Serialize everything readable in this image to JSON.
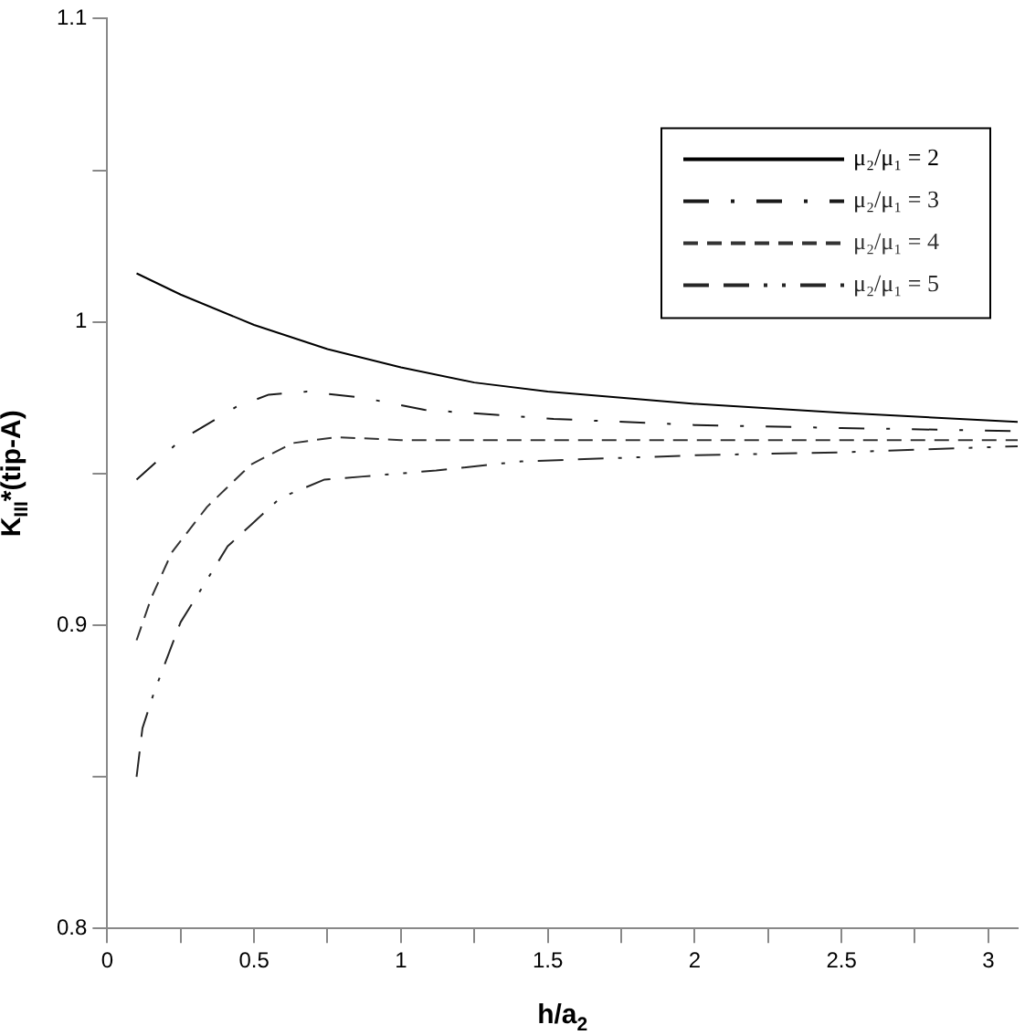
{
  "chart_data": {
    "type": "line",
    "xlabel": "h/a$_{2}$",
    "ylabel": "K$_{III}$*(tip-A)",
    "xlim": [
      0,
      3.1
    ],
    "ylim": [
      0.8,
      1.1
    ],
    "xticks": [
      0,
      {
        "value": 0.25,
        "label": null
      },
      0.5,
      {
        "value": 0.75,
        "label": null
      },
      1,
      {
        "value": 1.25,
        "label": null
      },
      1.5,
      {
        "value": 1.75,
        "label": null
      },
      2,
      {
        "value": 2.25,
        "label": null
      },
      2.5,
      {
        "value": 2.75,
        "label": null
      },
      3
    ],
    "yticks": [
      0.8,
      {
        "value": 0.85,
        "label": null
      },
      0.9,
      {
        "value": 0.95,
        "label": null
      },
      1,
      {
        "value": 1.05,
        "label": null
      },
      1.1
    ],
    "grid": false,
    "legend": "top right",
    "marker": "none",
    "series": [
      {
        "name": "μ₂/μ₁ = 2",
        "color": "#000000",
        "line_style": "solid",
        "x": [
          0.1,
          0.25,
          0.5,
          0.75,
          1.0,
          1.25,
          1.5,
          2.0,
          2.5,
          3.1
        ],
        "values": [
          1.016,
          1.009,
          0.999,
          0.991,
          0.985,
          0.98,
          0.977,
          0.973,
          0.97,
          0.967
        ]
      },
      {
        "name": "μ₂/μ₁ = 3",
        "color": "#1a1a1a",
        "line_style": "dashdot",
        "x": [
          0.1,
          0.25,
          0.44,
          0.55,
          0.68,
          0.87,
          1.08,
          1.52,
          2.0,
          2.5,
          3.1
        ],
        "values": [
          0.948,
          0.961,
          0.972,
          0.976,
          0.977,
          0.975,
          0.971,
          0.968,
          0.966,
          0.965,
          0.964
        ]
      },
      {
        "name": "μ₂/μ₁ = 4",
        "color": "#333333",
        "line_style": "dashed",
        "x": [
          0.1,
          0.15,
          0.22,
          0.34,
          0.49,
          0.63,
          0.78,
          1.0,
          1.5,
          2.0,
          2.5,
          3.1
        ],
        "values": [
          0.895,
          0.909,
          0.924,
          0.939,
          0.953,
          0.96,
          0.962,
          0.961,
          0.961,
          0.961,
          0.961,
          0.961
        ]
      },
      {
        "name": "μ₂/μ₁ = 5",
        "color": "#262626",
        "line_style": "dashdotdot",
        "x": [
          0.1,
          0.12,
          0.16,
          0.25,
          0.34,
          0.41,
          0.5,
          0.59,
          0.74,
          0.87,
          1.12,
          1.41,
          2.0,
          2.5,
          3.1
        ],
        "values": [
          0.85,
          0.866,
          0.878,
          0.901,
          0.915,
          0.926,
          0.934,
          0.942,
          0.948,
          0.949,
          0.951,
          0.954,
          0.956,
          0.957,
          0.959
        ]
      }
    ]
  }
}
